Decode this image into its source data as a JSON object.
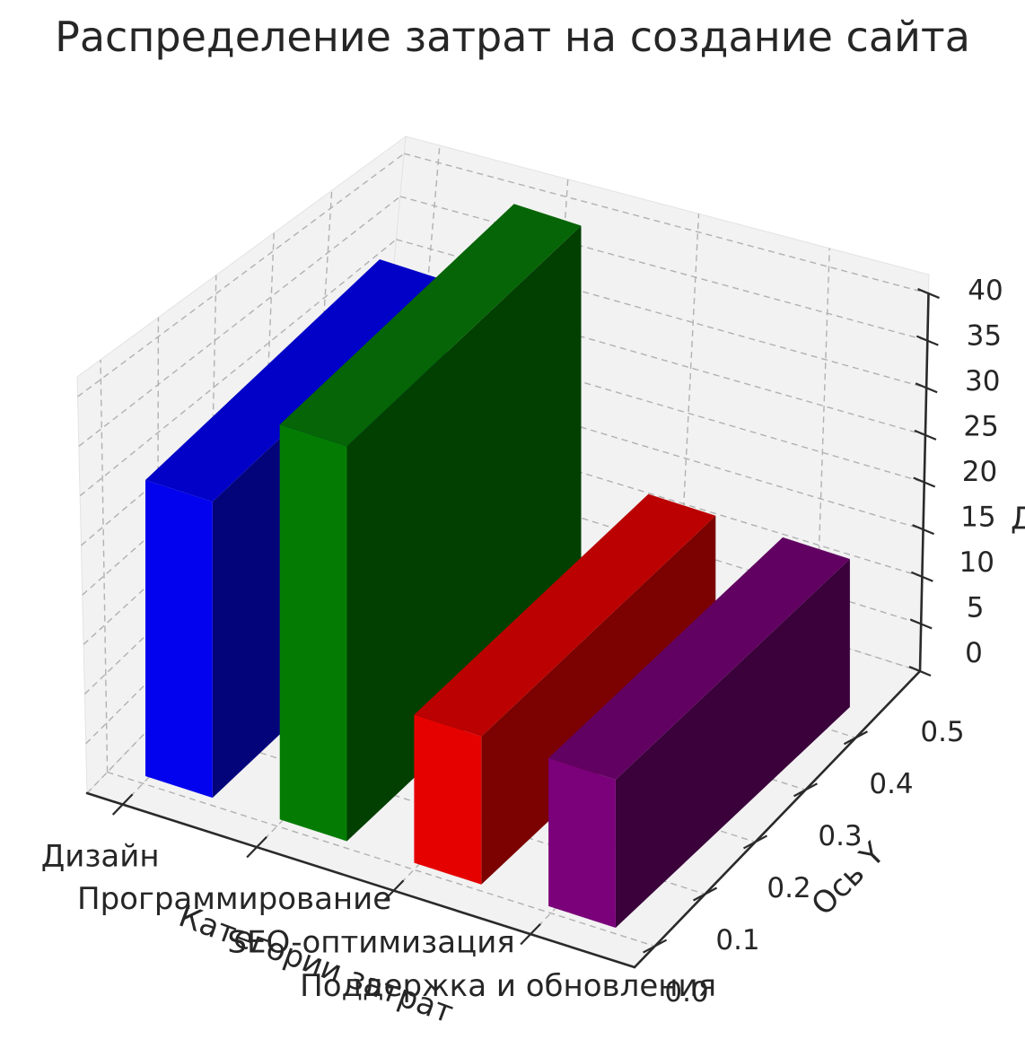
{
  "title": "Распределение затрат на создание сайта",
  "axes": {
    "x_label": "Категории затрат",
    "y_label": "Ось Y",
    "z_label_fragment": "Д"
  },
  "chart_data": {
    "type": "bar",
    "projection": "3d",
    "title": "Распределение затрат на создание сайта",
    "categories": [
      "Дизайн",
      "Программирование",
      "SEO-оптимизация",
      "Поддержка и обновления"
    ],
    "values": [
      30,
      40,
      15,
      15
    ],
    "xlabel": "Категории затрат",
    "ylabel": "Ось Y",
    "zlim": [
      0,
      40
    ],
    "z_ticks": [
      "0",
      "5",
      "10",
      "15",
      "20",
      "25",
      "30",
      "35",
      "40"
    ],
    "y_ticks": [
      "0.0",
      "0.1",
      "0.2",
      "0.3",
      "0.4",
      "0.5"
    ],
    "grid": true,
    "legend_position": "none",
    "bar_colors": [
      {
        "name": "blue",
        "front": "#0202ee",
        "top": "#0101c8",
        "side": "#04047a"
      },
      {
        "name": "green",
        "front": "#047c04",
        "top": "#066506",
        "side": "#024002"
      },
      {
        "name": "red",
        "front": "#e60101",
        "top": "#bb0101",
        "side": "#7c0101"
      },
      {
        "name": "purple",
        "front": "#7a017a",
        "top": "#610161",
        "side": "#3a013a"
      }
    ],
    "pane_color": "#f2f2f2",
    "pane_edge_color": "#e3e3e3",
    "grid_color": "#b1b1b1",
    "spine_color": "#2a2a2a",
    "text_color": "#262626",
    "background_color": "#ffffff"
  }
}
